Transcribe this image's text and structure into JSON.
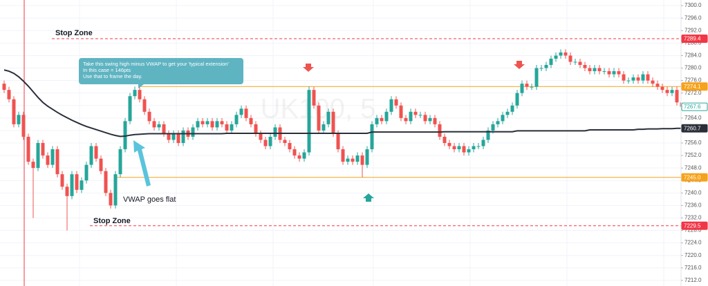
{
  "chart_data": {
    "type": "candlestick",
    "watermark": "UK100, 5",
    "up_color": "#26a69a",
    "down_color": "#ef5350",
    "grid": true,
    "ylim": [
      7210.2,
      7301.8
    ],
    "yticks": [
      {
        "value": 7212,
        "label": "7212.0"
      },
      {
        "value": 7216,
        "label": "7216.0"
      },
      {
        "value": 7220,
        "label": "7220.0"
      },
      {
        "value": 7224,
        "label": "7224.0"
      },
      {
        "value": 7228,
        "label": "7228.0"
      },
      {
        "value": 7232,
        "label": "7232.0"
      },
      {
        "value": 7236,
        "label": "7236.0"
      },
      {
        "value": 7240,
        "label": "7240.0"
      },
      {
        "value": 7244,
        "label": "7244.0"
      },
      {
        "value": 7248,
        "label": "7248.0"
      },
      {
        "value": 7252,
        "label": "7252.0"
      },
      {
        "value": 7256,
        "label": "7256.0"
      },
      {
        "value": 7260,
        "label": "7260.0"
      },
      {
        "value": 7264,
        "label": "7264.0"
      },
      {
        "value": 7268,
        "label": "7268.0"
      },
      {
        "value": 7272,
        "label": "7272.0"
      },
      {
        "value": 7276,
        "label": "7276.0"
      },
      {
        "value": 7280,
        "label": "7280.0"
      },
      {
        "value": 7284,
        "label": "7284.0"
      },
      {
        "value": 7288,
        "label": "7288.0"
      },
      {
        "value": 7292,
        "label": "7292.0"
      },
      {
        "value": 7296,
        "label": "7296.0"
      },
      {
        "value": 7300,
        "label": "7300.0"
      }
    ],
    "open": [
      7275,
      7273,
      7270,
      7262,
      7265,
      7258,
      7250,
      7248,
      7256,
      7252,
      7249,
      7254,
      7246,
      7242,
      7239,
      7246,
      7241,
      7244,
      7249,
      7255,
      7251,
      7247,
      7240,
      7236,
      7246,
      7254,
      7263,
      7271,
      7273,
      7270,
      7266,
      7263,
      7261,
      7262,
      7259,
      7257,
      7259,
      7256,
      7260,
      7258,
      7261,
      7263,
      7262,
      7263,
      7261,
      7263,
      7262,
      7260,
      7262,
      7265,
      7267,
      7264,
      7262,
      7259,
      7257,
      7255,
      7258,
      7261,
      7257,
      7256,
      7254,
      7252,
      7251,
      7253,
      7273,
      7268,
      7260,
      7262,
      7266,
      7259,
      7254,
      7250,
      7251,
      7250,
      7252,
      7249,
      7254,
      7262,
      7264,
      7263,
      7266,
      7270,
      7268,
      7264,
      7263,
      7266,
      7265,
      7265,
      7263,
      7264,
      7262,
      7258,
      7256,
      7255,
      7254,
      7255,
      7253,
      7254,
      7255,
      7255,
      7257,
      7260,
      7262,
      7263,
      7265,
      7266,
      7268,
      7272,
      7275,
      7274,
      7274,
      7280,
      7280,
      7281,
      7283,
      7284,
      7285,
      7284,
      7282,
      7282,
      7281,
      7280,
      7279,
      7280,
      7279,
      7279,
      7278,
      7279,
      7278,
      7276,
      7276,
      7277,
      7276,
      7278,
      7276,
      7275,
      7274,
      7273,
      7272,
      7273,
      7269
    ],
    "high": [
      7276,
      7274,
      7271,
      7266,
      7266,
      7259,
      7251,
      7257,
      7257,
      7253,
      7255,
      7255,
      7247,
      7243,
      7247,
      7247,
      7245,
      7250,
      7256,
      7256,
      7252,
      7248,
      7241,
      7247,
      7255,
      7264,
      7272,
      7274.1,
      7274,
      7271,
      7267,
      7264,
      7263,
      7263,
      7260,
      7260,
      7260,
      7261,
      7261,
      7262,
      7264,
      7264,
      7264,
      7264,
      7264,
      7264,
      7263,
      7263,
      7266,
      7268,
      7268,
      7265,
      7263,
      7260,
      7258,
      7259,
      7262,
      7262,
      7258,
      7257,
      7255,
      7253,
      7254,
      7274.1,
      7274,
      7269,
      7263,
      7267,
      7267,
      7260,
      7255,
      7252,
      7252,
      7253,
      7253,
      7255,
      7263,
      7265,
      7265,
      7267,
      7271,
      7271,
      7269,
      7265,
      7267,
      7267,
      7266,
      7266,
      7265,
      7265,
      7263,
      7259,
      7257,
      7256,
      7256,
      7256,
      7255,
      7256,
      7256,
      7258,
      7261,
      7263,
      7264,
      7266,
      7267,
      7269,
      7273,
      7276,
      7276,
      7275,
      7281,
      7281,
      7282,
      7284,
      7285,
      7286,
      7286,
      7285,
      7283,
      7283,
      7282,
      7281,
      7281,
      7281,
      7280,
      7280,
      7280,
      7280,
      7279,
      7277,
      7278,
      7278,
      7279,
      7279,
      7277,
      7276,
      7275,
      7274,
      7274,
      7274,
      7270
    ],
    "low": [
      7272,
      7269,
      7261,
      7261,
      7257,
      7249,
      7232,
      7247,
      7251,
      7248,
      7248,
      7245,
      7241,
      7228,
      7238,
      7240,
      7240,
      7243,
      7248,
      7250,
      7246,
      7239,
      7235,
      7235,
      7245,
      7253,
      7262,
      7270,
      7269,
      7265,
      7262,
      7260,
      7260,
      7258,
      7256,
      7256,
      7255,
      7255,
      7257,
      7257,
      7260,
      7261,
      7261,
      7260,
      7260,
      7261,
      7259,
      7259,
      7261,
      7264,
      7263,
      7261,
      7258,
      7256,
      7254,
      7254,
      7257,
      7256,
      7255,
      7253,
      7251,
      7250,
      7250,
      7252,
      7267,
      7259,
      7259,
      7261,
      7258,
      7253,
      7249,
      7249,
      7249,
      7249,
      7245,
      7248,
      7253,
      7261,
      7262,
      7262,
      7265,
      7267,
      7263,
      7262,
      7262,
      7264,
      7264,
      7262,
      7262,
      7261,
      7257,
      7255,
      7254,
      7253,
      7253,
      7252,
      7252,
      7253,
      7254,
      7254,
      7256,
      7259,
      7261,
      7262,
      7264,
      7265,
      7267,
      7271,
      7273,
      7273,
      7273,
      7279,
      7279,
      7280,
      7282,
      7283,
      7283,
      7281,
      7281,
      7280,
      7279,
      7278,
      7278,
      7278,
      7278,
      7277,
      7277,
      7277,
      7275,
      7275,
      7275,
      7275,
      7275,
      7275,
      7274,
      7273,
      7272,
      7271,
      7271,
      7268,
      7266
    ],
    "close": [
      7273,
      7270,
      7262,
      7265,
      7258,
      7250,
      7248,
      7256,
      7252,
      7249,
      7254,
      7246,
      7242,
      7239,
      7246,
      7241,
      7244,
      7249,
      7255,
      7251,
      7247,
      7240,
      7236,
      7246,
      7254,
      7263,
      7271,
      7273,
      7270,
      7266,
      7263,
      7261,
      7262,
      7259,
      7257,
      7259,
      7256,
      7260,
      7258,
      7261,
      7263,
      7262,
      7263,
      7261,
      7263,
      7262,
      7260,
      7262,
      7265,
      7267,
      7264,
      7262,
      7259,
      7257,
      7255,
      7258,
      7261,
      7257,
      7256,
      7254,
      7252,
      7251,
      7253,
      7273,
      7268,
      7260,
      7262,
      7266,
      7259,
      7254,
      7250,
      7251,
      7250,
      7252,
      7249,
      7254,
      7262,
      7264,
      7263,
      7266,
      7270,
      7268,
      7264,
      7263,
      7266,
      7265,
      7265,
      7263,
      7264,
      7262,
      7258,
      7256,
      7255,
      7254,
      7255,
      7253,
      7254,
      7255,
      7255,
      7257,
      7260,
      7262,
      7263,
      7265,
      7266,
      7268,
      7272,
      7275,
      7274,
      7274,
      7280,
      7280,
      7281,
      7283,
      7284,
      7285,
      7284,
      7282,
      7282,
      7281,
      7280,
      7279,
      7280,
      7279,
      7279,
      7278,
      7279,
      7278,
      7276,
      7276,
      7277,
      7276,
      7278,
      7276,
      7275,
      7274,
      7273,
      7272,
      7273,
      7269,
      7267.6
    ],
    "vwap": {
      "color": "#2a2e39",
      "values": [
        7279.4,
        7279.0,
        7278.3,
        7277.2,
        7275.8,
        7274.2,
        7272.4,
        7270.6,
        7269.0,
        7267.8,
        7266.8,
        7265.8,
        7264.9,
        7264.1,
        7263.3,
        7262.6,
        7261.9,
        7261.3,
        7260.8,
        7260.3,
        7259.8,
        7259.3,
        7258.8,
        7258.4,
        7258.1,
        7258.2,
        7258.5,
        7258.7,
        7258.8,
        7258.9,
        7259.0,
        7259.0,
        7259.0,
        7259.0,
        7259.0,
        7259.0,
        7259.0,
        7259.0,
        7259.0,
        7259.0,
        7259.0,
        7259.0,
        7259.0,
        7259.0,
        7259.0,
        7259.0,
        7259.1,
        7259.1,
        7259.1,
        7259.1,
        7259.1,
        7259.1,
        7259.1,
        7259.1,
        7259.1,
        7259.1,
        7259.1,
        7259.1,
        7259.1,
        7259.1,
        7259.1,
        7259.1,
        7259.1,
        7259.1,
        7259.1,
        7259.1,
        7259.1,
        7259.1,
        7259.1,
        7259.1,
        7259.1,
        7259.1,
        7259.1,
        7259.1,
        7259.1,
        7259.1,
        7259.5,
        7259.5,
        7259.5,
        7259.5,
        7259.5,
        7259.5,
        7259.5,
        7259.5,
        7259.5,
        7259.5,
        7259.5,
        7259.5,
        7259.5,
        7259.5,
        7259.5,
        7259.6,
        7259.6,
        7259.6,
        7259.6,
        7259.6,
        7259.6,
        7259.6,
        7259.6,
        7259.6,
        7259.6,
        7259.6,
        7259.6,
        7259.6,
        7259.6,
        7259.6,
        7259.9,
        7259.9,
        7259.9,
        7259.9,
        7259.9,
        7259.9,
        7259.9,
        7259.9,
        7259.9,
        7259.9,
        7259.9,
        7259.9,
        7259.9,
        7259.9,
        7259.9,
        7260.2,
        7260.2,
        7260.2,
        7260.2,
        7260.2,
        7260.2,
        7260.2,
        7260.2,
        7260.2,
        7260.2,
        7260.4,
        7260.4,
        7260.5,
        7260.5,
        7260.5,
        7260.6,
        7260.6,
        7260.6,
        7260.7,
        7260.7
      ]
    },
    "levels": [
      {
        "value": 7289.4,
        "color": "#f23645",
        "style": "dashed"
      },
      {
        "value": 7274.1,
        "color": "#f7a21b",
        "style": "solid"
      },
      {
        "value": {
          "value": 7245,
          "label": "7245.0"
        },
        "color": "#f7a21b",
        "style": "solid"
      },
      {
        "value": 7229.5,
        "color": "#f23645",
        "style": "dashed"
      }
    ],
    "annotations": {
      "stop_zone_top": "Stop Zone",
      "stop_zone_bottom": "Stop Zone",
      "callout": [
        "Take this swing high minus VWAP to get your 'typical extension'",
        "In this case = 146pts",
        "Use that to frame the day."
      ],
      "vwap_note": "VWAP goes flat"
    }
  }
}
